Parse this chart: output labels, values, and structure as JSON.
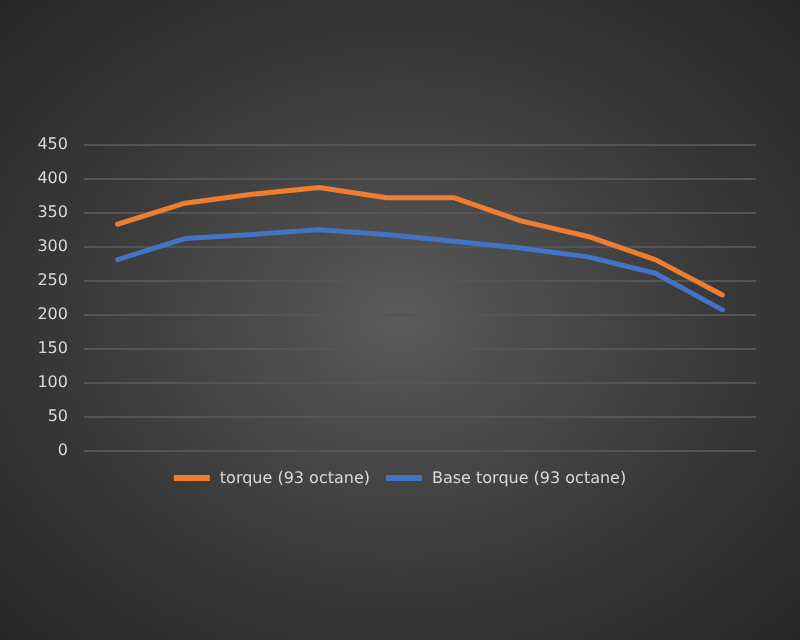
{
  "chart_data": {
    "type": "line",
    "categories": [
      null,
      null,
      null,
      null,
      null,
      null,
      null,
      null,
      null,
      null
    ],
    "series": [
      {
        "name": "torque (93 octane)",
        "color": "#ed7d31",
        "values": [
          332,
          363,
          376,
          386,
          371,
          371,
          337,
          314,
          280,
          228
        ]
      },
      {
        "name": "Base torque (93 octane)",
        "color": "#4472c4",
        "values": [
          280,
          311,
          317,
          324,
          317,
          307,
          297,
          284,
          260,
          206
        ]
      }
    ],
    "ylim": [
      0,
      450
    ],
    "yticks": [
      0,
      50,
      100,
      150,
      200,
      250,
      300,
      350,
      400,
      450
    ],
    "grid": "y",
    "legend": "bottom",
    "marker": "none",
    "line_style": "solid"
  }
}
